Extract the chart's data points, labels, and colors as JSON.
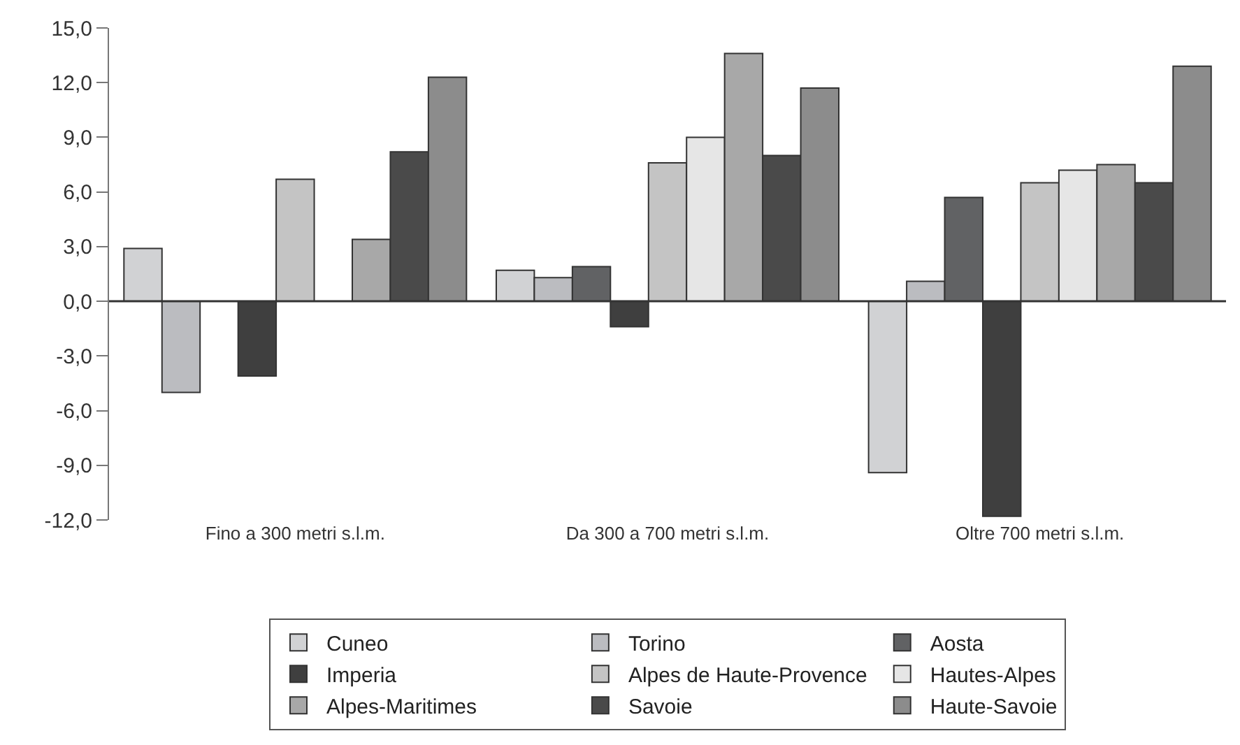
{
  "chart_data": {
    "type": "bar",
    "categories": [
      "Fino a 300 metri s.l.m.",
      "Da 300 a 700 metri s.l.m.",
      "Oltre 700 metri s.l.m."
    ],
    "series": [
      {
        "name": "Cuneo",
        "color": "#d1d2d4",
        "values": [
          2.9,
          1.7,
          -9.4
        ]
      },
      {
        "name": "Torino",
        "color": "#bbbcc0",
        "values": [
          -5.0,
          1.3,
          1.1
        ]
      },
      {
        "name": "Aosta",
        "color": "#616264",
        "values": [
          null,
          1.9,
          5.7
        ]
      },
      {
        "name": "Imperia",
        "color": "#3f3f3f",
        "values": [
          -4.1,
          -1.4,
          -11.8
        ]
      },
      {
        "name": "Alpes de Haute-Provence",
        "color": "#c4c4c4",
        "values": [
          6.7,
          7.6,
          6.5
        ]
      },
      {
        "name": "Hautes-Alpes",
        "color": "#e6e6e6",
        "values": [
          null,
          9.0,
          7.2
        ]
      },
      {
        "name": "Alpes-Maritimes",
        "color": "#a8a8a8",
        "values": [
          3.4,
          13.6,
          7.5
        ]
      },
      {
        "name": "Savoie",
        "color": "#4a4a4a",
        "values": [
          8.2,
          8.0,
          6.5
        ]
      },
      {
        "name": "Haute-Savoie",
        "color": "#8c8c8c",
        "values": [
          12.3,
          11.7,
          12.9
        ]
      }
    ],
    "ylim": [
      -12,
      15
    ],
    "yticks": [
      {
        "value": -12,
        "label": "-12,0"
      },
      {
        "value": -9,
        "label": "-9,0"
      },
      {
        "value": -6,
        "label": "-6,0"
      },
      {
        "value": -3,
        "label": "-3,0"
      },
      {
        "value": 0,
        "label": "0,0"
      },
      {
        "value": 3,
        "label": "3,0"
      },
      {
        "value": 6,
        "label": "6,0"
      },
      {
        "value": 9,
        "label": "9,0"
      },
      {
        "value": 12,
        "label": "12,0"
      },
      {
        "value": 15,
        "label": "15,0"
      }
    ],
    "legend": "bottom"
  }
}
